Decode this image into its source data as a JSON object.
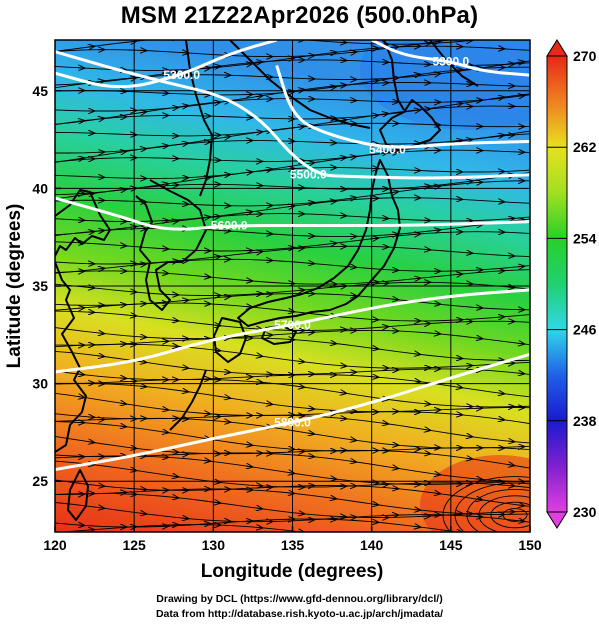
{
  "title": "MSM 21Z22Apr2026 (500.0hPa)",
  "xlabel": "Longitude (degrees)",
  "ylabel": "Latitude  (degrees)",
  "footer": {
    "line1": "Drawing by DCL (https://www.gfd-dennou.org/library/dcl/)",
    "line2": "Data from http://database.rish.kyoto-u.ac.jp/arch/jmadata/"
  },
  "chart_data": {
    "type": "heatmap",
    "variable_field": "temperature (K) with streamlines and geopotential height contours",
    "xlim": [
      120,
      150
    ],
    "ylim": [
      22.4,
      47.6
    ],
    "x_ticks": [
      120,
      125,
      130,
      135,
      140,
      145,
      150
    ],
    "y_ticks": [
      25,
      30,
      35,
      40,
      45
    ],
    "colorbar": {
      "min": 230,
      "max": 270,
      "ticks": [
        230,
        238,
        246,
        254,
        262,
        270
      ],
      "colors": [
        "#e040e0",
        "#1a1ad0",
        "#30d8e8",
        "#28d028",
        "#e8e020",
        "#e82818"
      ]
    },
    "contours": [
      {
        "label": "5300.0",
        "points": [
          [
            120,
            45.9
          ],
          [
            124,
            45.0
          ],
          [
            128,
            45.8
          ],
          [
            131,
            46.9
          ],
          [
            134,
            47.6
          ]
        ]
      },
      {
        "label": "5300.0",
        "points": [
          [
            140,
            47.6
          ],
          [
            142,
            46.8
          ],
          [
            145,
            46.5
          ],
          [
            147,
            46.0
          ],
          [
            150,
            45.8
          ]
        ]
      },
      {
        "label": "5400.0",
        "points": [
          [
            134,
            46.3
          ],
          [
            135,
            43.7
          ],
          [
            137,
            42.8
          ],
          [
            141,
            42.0
          ],
          [
            145,
            42.3
          ],
          [
            150,
            42.4
          ]
        ]
      },
      {
        "label": "5500.0",
        "points": [
          [
            120,
            47.0
          ],
          [
            126,
            45.6
          ],
          [
            132,
            44.5
          ],
          [
            136,
            40.7
          ],
          [
            139,
            40.6
          ],
          [
            144,
            40.5
          ],
          [
            150,
            40.7
          ]
        ]
      },
      {
        "label": "5600.0",
        "points": [
          [
            120,
            39.5
          ],
          [
            124,
            38.6
          ],
          [
            127,
            37.8
          ],
          [
            131,
            38.1
          ],
          [
            137,
            38.1
          ],
          [
            143,
            38.1
          ],
          [
            150,
            38.3
          ]
        ]
      },
      {
        "label": "5700.0",
        "points": [
          [
            120,
            30.6
          ],
          [
            125,
            31.1
          ],
          [
            130,
            32.3
          ],
          [
            135,
            33.0
          ],
          [
            140,
            33.9
          ],
          [
            145,
            34.5
          ],
          [
            150,
            34.8
          ]
        ]
      },
      {
        "label": "5800.0",
        "points": [
          [
            120,
            25.6
          ],
          [
            125,
            26.3
          ],
          [
            130,
            27.2
          ],
          [
            135,
            28.0
          ],
          [
            140,
            29.0
          ],
          [
            145,
            30.3
          ],
          [
            150,
            31.5
          ]
        ]
      }
    ]
  }
}
